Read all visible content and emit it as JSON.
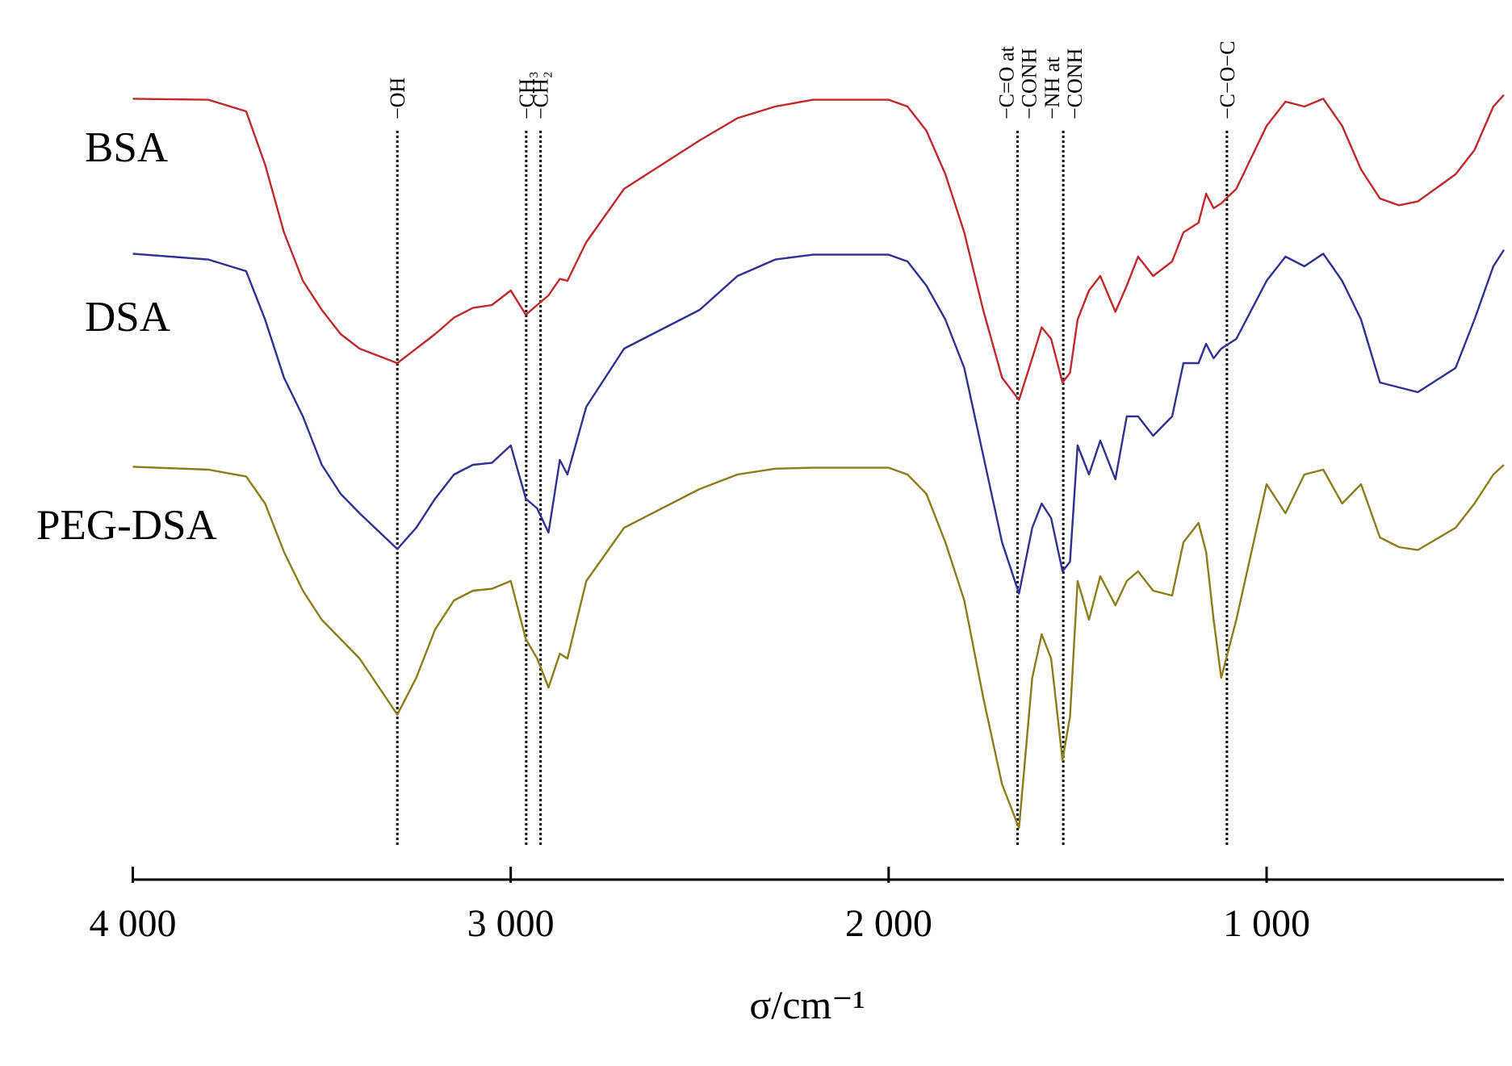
{
  "chart_data": {
    "type": "line",
    "xlabel": "σ/cm⁻¹",
    "xlim": [
      4000,
      372
    ],
    "ylim": [
      10,
      95
    ],
    "xticks": [
      {
        "value": 4000,
        "label": "4 000"
      },
      {
        "value": 3000,
        "label": "3 000"
      },
      {
        "value": 2000,
        "label": "2 000"
      },
      {
        "value": 1000,
        "label": "1 000"
      }
    ],
    "x": [
      4000,
      3800,
      3700,
      3650,
      3600,
      3550,
      3500,
      3450,
      3400,
      3300,
      3250,
      3200,
      3150,
      3100,
      3050,
      3000,
      2960,
      2930,
      2900,
      2870,
      2850,
      2800,
      2700,
      2600,
      2500,
      2400,
      2300,
      2200,
      2000,
      1950,
      1900,
      1850,
      1800,
      1750,
      1700,
      1655,
      1620,
      1595,
      1570,
      1540,
      1520,
      1500,
      1470,
      1440,
      1400,
      1370,
      1340,
      1300,
      1250,
      1220,
      1180,
      1160,
      1140,
      1120,
      1080,
      1000,
      950,
      900,
      850,
      800,
      750,
      700,
      650,
      600,
      500,
      450,
      400,
      372
    ],
    "series": [
      {
        "name": "BSA",
        "color": "#c0282d",
        "values": [
          89.8,
          89.7,
          88.5,
          83,
          76,
          71,
          68,
          65.5,
          64,
          62.5,
          64,
          65.5,
          67.2,
          68.2,
          68.5,
          70,
          67.5,
          68.5,
          69.5,
          71.2,
          71,
          75,
          80.5,
          83,
          85.5,
          87.8,
          89,
          89.7,
          89.7,
          89,
          86.5,
          82,
          76,
          68,
          61,
          58.7,
          63,
          66.2,
          65,
          60.5,
          61.5,
          67,
          70,
          71.5,
          67.8,
          70.5,
          73.5,
          71.5,
          73,
          76,
          77,
          80,
          78.5,
          79,
          80.5,
          87,
          89.5,
          89,
          89.8,
          87,
          82.5,
          79.5,
          78.8,
          79.2,
          82,
          84.5,
          89,
          90.2
        ]
      },
      {
        "name": "DSA",
        "color": "#2e3192",
        "values": [
          73.8,
          73.2,
          72,
          67,
          61,
          57,
          52,
          49,
          47,
          43.3,
          45.5,
          48.5,
          51,
          52,
          52.2,
          54,
          48.5,
          47.5,
          45,
          52.5,
          51,
          58,
          64,
          66,
          68,
          71.5,
          73.2,
          73.7,
          73.7,
          73,
          70.5,
          67,
          62,
          53,
          44,
          38.7,
          45.5,
          48,
          46.5,
          41,
          42,
          54,
          51,
          54.5,
          50.5,
          57,
          57,
          55,
          57,
          62.5,
          62.5,
          64.5,
          63,
          64,
          65,
          71,
          73.5,
          72.5,
          73.8,
          71,
          67,
          60.5,
          60,
          59.5,
          62,
          67,
          72.5,
          74.2
        ]
      },
      {
        "name": "PEG-DSA",
        "color": "#8b7d1a",
        "values": [
          51.8,
          51.5,
          50.8,
          48,
          43,
          39,
          36,
          34,
          32,
          26.2,
          30,
          35,
          38,
          39,
          39.2,
          40,
          34,
          32,
          29,
          32.5,
          32,
          40,
          45.5,
          47.5,
          49.5,
          51,
          51.6,
          51.7,
          51.7,
          51,
          49,
          44,
          38,
          28,
          19,
          14.5,
          30,
          34.5,
          32,
          21.5,
          26,
          40,
          36,
          40.5,
          37.5,
          40,
          41,
          39,
          38.5,
          44,
          46,
          43,
          36,
          30,
          36,
          50,
          47,
          51,
          51.5,
          48,
          50,
          44.5,
          43.5,
          43.2,
          45.5,
          48,
          51,
          52
        ]
      }
    ],
    "annotations": [
      {
        "x": 3300,
        "lines": [
          "−OH"
        ]
      },
      {
        "x": 2959,
        "lines": [
          "−CH₃"
        ]
      },
      {
        "x": 2921,
        "lines": [
          "−CH₂"
        ]
      },
      {
        "x": 1659,
        "lines": [
          "−C=O at",
          "−CONH"
        ]
      },
      {
        "x": 1538,
        "lines": [
          "−NH at",
          "−CONH"
        ]
      },
      {
        "x": 1105,
        "lines": [
          "−C−O−C"
        ]
      }
    ]
  }
}
